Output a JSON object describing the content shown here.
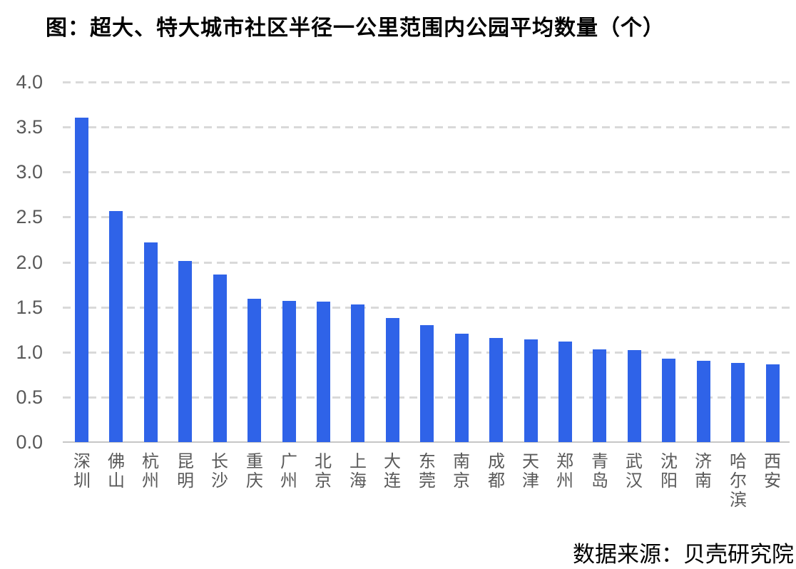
{
  "title": "图：超大、特大城市社区半径一公里范围内公园平均数量（个）",
  "source": "数据来源：贝壳研究院",
  "colors": {
    "bar": "#2f63e8",
    "gridline": "#d9d9d9",
    "axis_line": "#c6c6c6",
    "tick_text": "#595959",
    "title_text": "#000000"
  },
  "chart_data": {
    "type": "bar",
    "title": "图：超大、特大城市社区半径一公里范围内公园平均数量（个）",
    "categories": [
      "深圳",
      "佛山",
      "杭州",
      "昆明",
      "长沙",
      "重庆",
      "广州",
      "北京",
      "上海",
      "大连",
      "东莞",
      "南京",
      "成都",
      "天津",
      "郑州",
      "青岛",
      "武汉",
      "沈阳",
      "济南",
      "哈尔滨",
      "西安"
    ],
    "values": [
      3.6,
      2.57,
      2.22,
      2.01,
      1.86,
      1.59,
      1.57,
      1.56,
      1.53,
      1.38,
      1.3,
      1.2,
      1.16,
      1.14,
      1.12,
      1.03,
      1.02,
      0.93,
      0.9,
      0.88,
      0.86
    ],
    "xlabel": "",
    "ylabel": "",
    "ylim": [
      0.0,
      4.0
    ],
    "yticks": [
      "0.0",
      "0.5",
      "1.0",
      "1.5",
      "2.0",
      "2.5",
      "3.0",
      "3.5",
      "4.0"
    ],
    "grid": "horizontal-dashed",
    "legend": "none",
    "bar_orientation": "vertical",
    "x_label_orientation": "vertical",
    "source": "数据来源：贝壳研究院"
  }
}
